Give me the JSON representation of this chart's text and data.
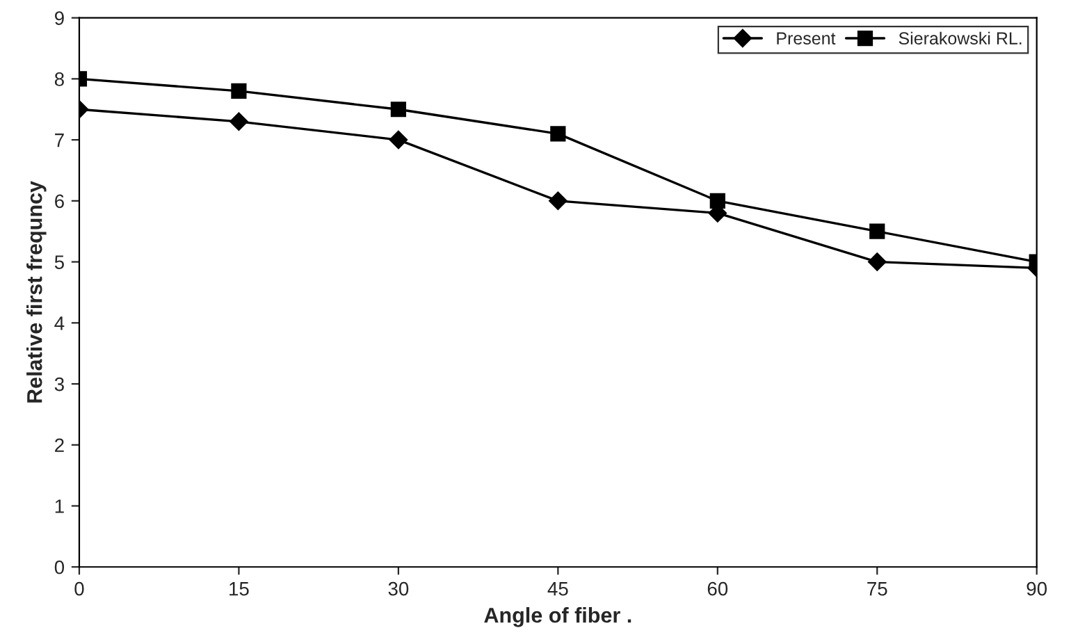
{
  "chart_data": {
    "type": "line",
    "xlabel": "Angle of fiber .",
    "ylabel": "Relative first frequncy",
    "x": [
      0,
      15,
      30,
      45,
      60,
      75,
      90
    ],
    "series": [
      {
        "name": "Present",
        "color": "#000000",
        "marker": "diamond",
        "values": [
          7.5,
          7.3,
          7.0,
          6.0,
          5.8,
          5.0,
          4.9
        ]
      },
      {
        "name": "Sierakowski RL.",
        "color": "#000000",
        "marker": "square",
        "values": [
          8.0,
          7.8,
          7.5,
          7.1,
          6.0,
          5.5,
          5.0
        ]
      }
    ],
    "xlim": [
      0,
      90
    ],
    "xticks": [
      0,
      15,
      30,
      45,
      60,
      75,
      90
    ],
    "ylim": [
      0,
      9
    ],
    "yticks": [
      0,
      1,
      2,
      3,
      4,
      5,
      6,
      7,
      8,
      9
    ],
    "grid": false,
    "legend": "top right",
    "line_style": "solid"
  }
}
